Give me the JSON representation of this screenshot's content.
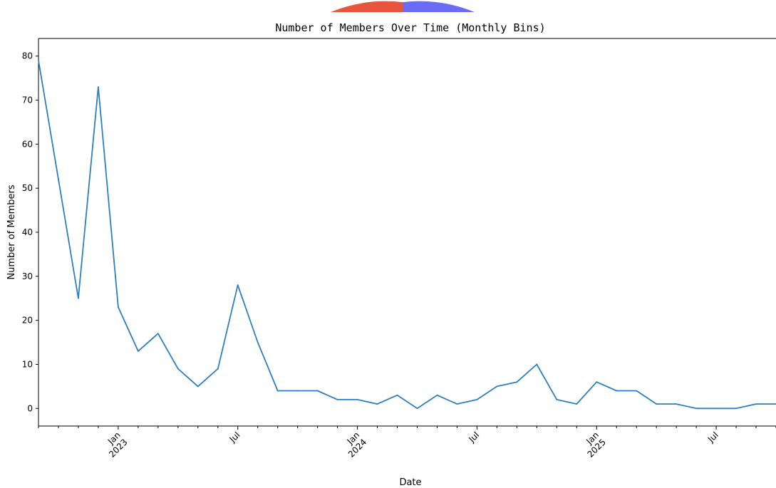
{
  "chart_data": {
    "type": "line",
    "title": "Number of Members Over Time (Monthly Bins)",
    "xlabel": "Date",
    "ylabel": "Number of Members",
    "x_tick_labels": [
      {
        "date": "2023-01",
        "lines": [
          "Jan",
          "2023"
        ]
      },
      {
        "date": "2023-07",
        "lines": [
          "Jul"
        ]
      },
      {
        "date": "2024-01",
        "lines": [
          "Jan",
          "2024"
        ]
      },
      {
        "date": "2024-07",
        "lines": [
          "Jul"
        ]
      },
      {
        "date": "2025-01",
        "lines": [
          "Jan",
          "2025"
        ]
      },
      {
        "date": "2025-07",
        "lines": [
          "Jul"
        ]
      }
    ],
    "yticks": [
      0,
      10,
      20,
      30,
      40,
      50,
      60,
      70,
      80
    ],
    "xlim": [
      "2022-09",
      "2025-10"
    ],
    "ylim": [
      -4,
      84
    ],
    "grid": false,
    "series": [
      {
        "color": "#2e7fbf",
        "x": [
          "2022-09",
          "2022-10",
          "2022-11",
          "2022-12",
          "2023-01",
          "2023-02",
          "2023-03",
          "2023-04",
          "2023-05",
          "2023-06",
          "2023-07",
          "2023-08",
          "2023-09",
          "2023-10",
          "2023-11",
          "2023-12",
          "2024-01",
          "2024-02",
          "2024-03",
          "2024-04",
          "2024-05",
          "2024-06",
          "2024-07",
          "2024-08",
          "2024-09",
          "2024-10",
          "2024-11",
          "2024-12",
          "2025-01",
          "2025-02",
          "2025-03",
          "2025-04",
          "2025-05",
          "2025-06",
          "2025-07",
          "2025-08",
          "2025-09",
          "2025-10"
        ],
        "values": [
          79,
          52,
          25,
          73,
          23,
          13,
          17,
          9,
          5,
          9,
          28,
          15,
          4,
          4,
          4,
          2,
          2,
          1,
          3,
          0,
          3,
          1,
          2,
          5,
          6,
          10,
          2,
          1,
          6,
          4,
          4,
          1,
          1,
          0,
          0,
          0,
          1,
          1
        ]
      }
    ]
  },
  "decoration": {
    "semicircle_colors": [
      "#e8553d",
      "#6b6cf5"
    ]
  }
}
